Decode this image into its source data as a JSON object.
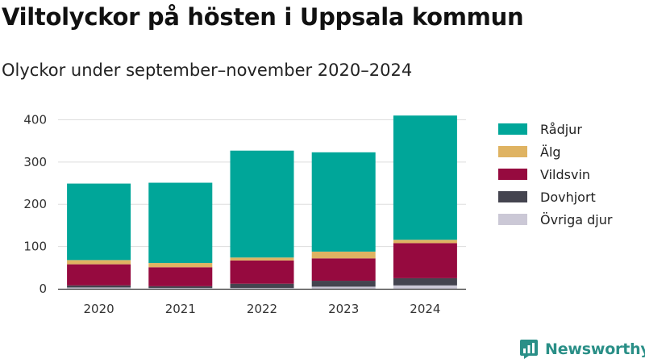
{
  "header": {
    "title": "Viltolyckor på hösten i Uppsala kommun",
    "subtitle": "Olyckor under september–november 2020–2024"
  },
  "brand": {
    "name": "Newsworthy",
    "color": "#2a8f87",
    "icon": "newsworthy-logo-icon"
  },
  "chart_data": {
    "type": "bar",
    "stacked": true,
    "title": "Viltolyckor på hösten i Uppsala kommun",
    "subtitle": "Olyckor under september–november 2020–2024",
    "xlabel": "",
    "ylabel": "",
    "categories": [
      "2020",
      "2021",
      "2022",
      "2023",
      "2024"
    ],
    "ylim": [
      0,
      420
    ],
    "yticks": [
      0,
      100,
      200,
      300,
      400
    ],
    "grid": true,
    "legend_position": "right",
    "series": [
      {
        "name": "Övriga djur",
        "color": "#cbc8d6",
        "values": [
          3,
          2,
          2,
          5,
          8
        ]
      },
      {
        "name": "Dovhjort",
        "color": "#44444f",
        "values": [
          5,
          4,
          10,
          14,
          17
        ]
      },
      {
        "name": "Vildsvin",
        "color": "#960a3f",
        "values": [
          50,
          45,
          55,
          53,
          83
        ]
      },
      {
        "name": "Älg",
        "color": "#dfb362",
        "values": [
          10,
          10,
          7,
          16,
          8
        ]
      },
      {
        "name": "Rådjur",
        "color": "#00a699",
        "values": [
          181,
          190,
          253,
          235,
          294
        ]
      }
    ]
  },
  "legend": {
    "items": [
      {
        "label": "Rådjur",
        "color": "#00a699"
      },
      {
        "label": "Älg",
        "color": "#dfb362"
      },
      {
        "label": "Vildsvin",
        "color": "#960a3f"
      },
      {
        "label": "Dovhjort",
        "color": "#44444f"
      },
      {
        "label": "Övriga djur",
        "color": "#cbc8d6"
      }
    ]
  }
}
